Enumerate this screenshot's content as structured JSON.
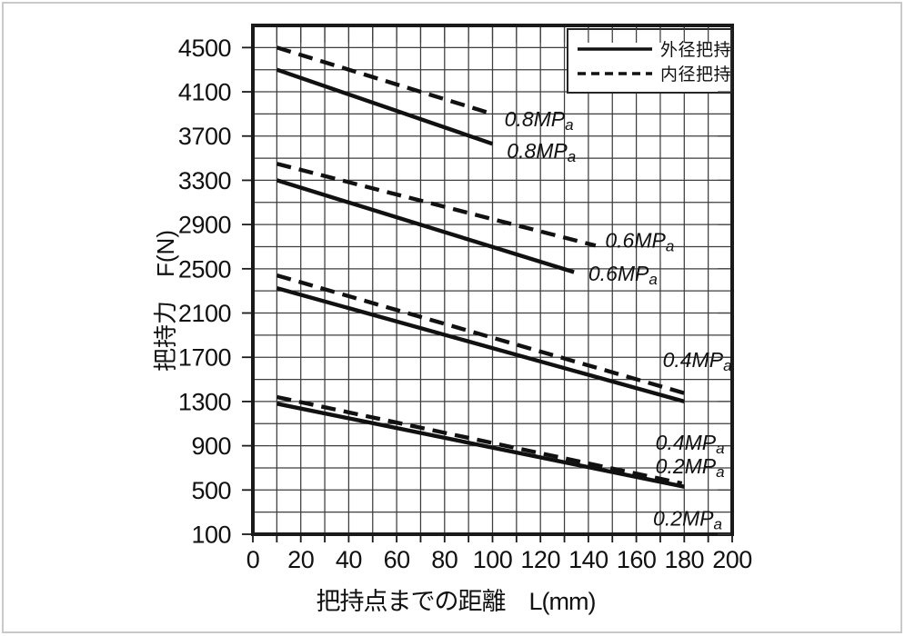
{
  "colors": {
    "line": "#111111",
    "grid": "#3d3d3d",
    "border": "#1a1a1a",
    "text": "#111111",
    "background": "#ffffff"
  },
  "chart_data": {
    "type": "line",
    "title": "",
    "xlabel": "把持点までの距離　L(mm)",
    "ylabel": "把持力　F(N)",
    "xlim": [
      0,
      200
    ],
    "ylim": [
      100,
      4700
    ],
    "x_ticks": [
      0,
      20,
      40,
      60,
      80,
      100,
      120,
      140,
      160,
      180,
      200
    ],
    "y_ticks": [
      100,
      500,
      900,
      1300,
      1700,
      2100,
      2500,
      2900,
      3300,
      3700,
      4100,
      4500
    ],
    "x_grid_step_mm": 10,
    "y_grid_step_n": 200,
    "grid": "on",
    "legend_position": "top-right",
    "legend": [
      {
        "label": "外径把持",
        "style": "solid"
      },
      {
        "label": "内径把持",
        "style": "dashed"
      }
    ],
    "series": [
      {
        "name": "内径把持 0.8MPa",
        "grip": "内径把持",
        "pressure_mpa": 0.8,
        "style": "dashed",
        "points": [
          [
            10,
            4500
          ],
          [
            100,
            3900
          ]
        ]
      },
      {
        "name": "外径把持 0.8MPa",
        "grip": "外径把持",
        "pressure_mpa": 0.8,
        "style": "solid",
        "points": [
          [
            10,
            4300
          ],
          [
            100,
            3630
          ]
        ]
      },
      {
        "name": "内径把持 0.6MPa",
        "grip": "内径把持",
        "pressure_mpa": 0.6,
        "style": "dashed",
        "points": [
          [
            10,
            3450
          ],
          [
            143,
            2710
          ]
        ]
      },
      {
        "name": "外径把持 0.6MPa",
        "grip": "外径把持",
        "pressure_mpa": 0.6,
        "style": "solid",
        "points": [
          [
            10,
            3300
          ],
          [
            134,
            2470
          ]
        ]
      },
      {
        "name": "内径把持 0.4MPa",
        "grip": "内径把持",
        "pressure_mpa": 0.4,
        "style": "dashed",
        "points": [
          [
            10,
            2440
          ],
          [
            181,
            1370
          ]
        ]
      },
      {
        "name": "外径把持 0.4MPa",
        "grip": "外径把持",
        "pressure_mpa": 0.4,
        "style": "solid",
        "points": [
          [
            10,
            2325
          ],
          [
            180,
            1300
          ]
        ]
      },
      {
        "name": "内径把持 0.2MPa",
        "grip": "内径把持",
        "pressure_mpa": 0.2,
        "style": "dashed",
        "points": [
          [
            10,
            1340
          ],
          [
            179,
            560
          ]
        ]
      },
      {
        "name": "外径把持 0.2MPa",
        "grip": "外径把持",
        "pressure_mpa": 0.2,
        "style": "solid",
        "points": [
          [
            10,
            1280
          ],
          [
            180,
            530
          ]
        ]
      }
    ],
    "annotations": [
      {
        "text": "0.8MPa",
        "x_mm": 105,
        "f_n": 3790,
        "series": "内径把持 0.8MPa"
      },
      {
        "text": "0.8MPa",
        "x_mm": 106,
        "f_n": 3500,
        "series": "外径把持 0.8MPa"
      },
      {
        "text": "0.6MPa",
        "x_mm": 147,
        "f_n": 2690,
        "series": "内径把持 0.6MPa"
      },
      {
        "text": "0.6MPa",
        "x_mm": 140,
        "f_n": 2390,
        "series": "外径把持 0.6MPa"
      },
      {
        "text": "0.4MPa",
        "x_mm": 171,
        "f_n": 1610,
        "series": "内径把持 0.4MPa"
      },
      {
        "text": "0.4MPa",
        "x_mm": 168,
        "f_n": 865,
        "series": "外径把持 0.4MPa"
      },
      {
        "text": "0.2MPa",
        "x_mm": 168,
        "f_n": 650,
        "series": "内径把持 0.2MPa"
      },
      {
        "text": "0.2MPa",
        "x_mm": 167,
        "f_n": 180,
        "series": "外径把持 0.2MPa"
      }
    ]
  }
}
